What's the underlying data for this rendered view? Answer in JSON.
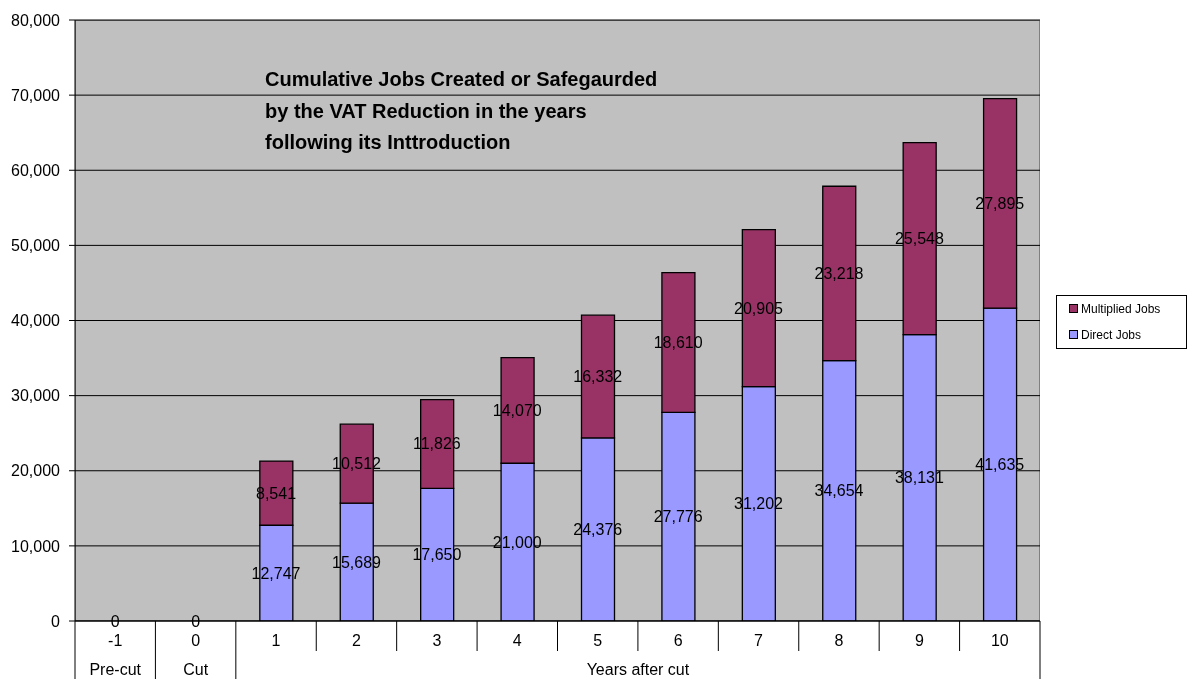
{
  "chart_data": {
    "type": "bar",
    "title": "Cumulative Jobs Created or Safegaurded by the VAT Reduction in the years following its Inttroduction",
    "categories": [
      "-1",
      "0",
      "1",
      "2",
      "3",
      "4",
      "5",
      "6",
      "7",
      "8",
      "9",
      "10"
    ],
    "series": [
      {
        "name": "Direct Jobs",
        "color": "#9999ff",
        "values": [
          0,
          0,
          12747,
          15689,
          17650,
          21000,
          24376,
          27776,
          31202,
          34654,
          38131,
          41635
        ],
        "value_labels": [
          null,
          null,
          "12,747",
          "15,689",
          "17,650",
          "21,000",
          "24,376",
          "27,776",
          "31,202",
          "34,654",
          "38,131",
          "41,635"
        ]
      },
      {
        "name": "Multiplied Jobs",
        "color": "#993366",
        "values": [
          0,
          0,
          8541,
          10512,
          11826,
          14070,
          16332,
          18610,
          20905,
          23218,
          25548,
          27895
        ],
        "value_labels": [
          "0",
          "0",
          "8,541",
          "10,512",
          "11,826",
          "14,070",
          "16,332",
          "18,610",
          "20,905",
          "23,218",
          "25,548",
          "27,895"
        ]
      }
    ],
    "stacked": true,
    "ylim": [
      0,
      80000
    ],
    "yticks": [
      0,
      {
        "value": 10000,
        "label": "10,000"
      },
      {
        "value": 20000,
        "label": "20,000"
      },
      {
        "value": 30000,
        "label": "30,000"
      },
      {
        "value": 40000,
        "label": "40,000"
      },
      {
        "value": 50000,
        "label": "50,000"
      },
      {
        "value": 60000,
        "label": "60,000"
      },
      {
        "value": 70000,
        "label": "70,000"
      },
      {
        "value": 80000,
        "label": "80,000"
      }
    ],
    "grid": "y",
    "legend": "right",
    "annotations": [
      "Pre-cut",
      "Cut",
      "Years after cut"
    ]
  }
}
